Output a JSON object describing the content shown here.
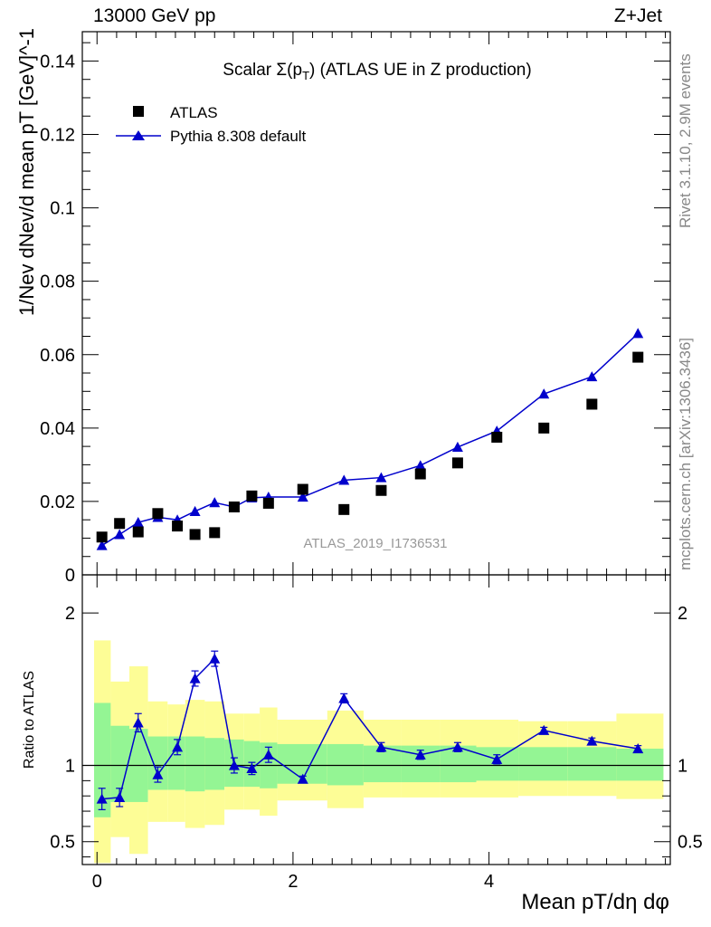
{
  "header": {
    "left": "13000 GeV pp",
    "right": "Z+Jet"
  },
  "side_labels": {
    "rivet": "Rivet 3.1.10,  2.9M events",
    "mcplots": "mcplots.cern.ch [arXiv:1306.3436]"
  },
  "chart_data": [
    {
      "type": "scatter",
      "panel": "main",
      "title": "Scalar Σ(p_T) (ATLAS UE in Z production)",
      "watermark": "ATLAS_2019_I1736531",
      "ylabel": "1/N_ev dN_ev/d mean p_T [GeV]^-1",
      "xlabel": "",
      "xlim": [
        -0.15,
        5.85
      ],
      "ylim": [
        0,
        0.148
      ],
      "y_ticks": [
        0,
        0.02,
        0.04,
        0.06,
        0.08,
        0.1,
        0.12,
        0.14
      ],
      "y_tick_labels": [
        "0",
        "0.02",
        "0.04",
        "0.06",
        "0.08",
        "0.1",
        "0.12",
        "0.14"
      ],
      "x_ticks": [
        0,
        2,
        4
      ],
      "legend_position": "top-left",
      "series": [
        {
          "name": "ATLAS",
          "style": "square-marker",
          "color": "#000000",
          "x": [
            0.05,
            0.23,
            0.42,
            0.62,
            0.82,
            1.0,
            1.2,
            1.4,
            1.58,
            1.75,
            2.1,
            2.52,
            2.9,
            3.3,
            3.68,
            4.08,
            4.56,
            5.05,
            5.52
          ],
          "y": [
            0.0103,
            0.014,
            0.0117,
            0.0167,
            0.0133,
            0.011,
            0.0115,
            0.0185,
            0.0215,
            0.0195,
            0.0233,
            0.0178,
            0.023,
            0.0275,
            0.0305,
            0.0375,
            0.04,
            0.0465,
            0.0593
          ]
        },
        {
          "name": "Pythia 8.308 default",
          "style": "triangle-line",
          "color": "#0000cc",
          "x": [
            0.05,
            0.23,
            0.42,
            0.62,
            0.82,
            1.0,
            1.2,
            1.4,
            1.58,
            1.75,
            2.1,
            2.52,
            2.9,
            3.3,
            3.68,
            4.08,
            4.56,
            5.05,
            5.52
          ],
          "y": [
            0.008,
            0.011,
            0.0143,
            0.0157,
            0.015,
            0.0173,
            0.0197,
            0.0185,
            0.021,
            0.0212,
            0.0212,
            0.0258,
            0.0265,
            0.0298,
            0.0348,
            0.0392,
            0.0493,
            0.054,
            0.0658
          ],
          "err": [
            0.0008,
            0.0007,
            0.0007,
            0.0008,
            0.0008,
            0.0008,
            0.001,
            0.0008,
            0.0008,
            0.001,
            0.0008,
            0.0008,
            0.0008,
            0.0008,
            0.0008,
            0.0008,
            0.001,
            0.001,
            0.0012
          ]
        }
      ]
    },
    {
      "type": "line",
      "panel": "ratio",
      "ylabel": "Ratio to ATLAS",
      "xlabel": "Mean p_T/dη dφ",
      "xlim": [
        -0.15,
        5.85
      ],
      "ylim": [
        0.35,
        2.25
      ],
      "y_ticks": [
        0.5,
        1,
        2
      ],
      "y_tick_labels": [
        "0.5",
        "1",
        "2"
      ],
      "x_ticks": [
        0,
        2,
        4
      ],
      "x_tick_labels": [
        "0",
        "2",
        "4"
      ],
      "reference_line": 1,
      "bands": {
        "bin_edges": [
          -0.03,
          0.14,
          0.33,
          0.52,
          0.72,
          0.9,
          1.1,
          1.3,
          1.5,
          1.66,
          1.84,
          2.35,
          2.72,
          3.1,
          3.5,
          3.87,
          4.3,
          4.8,
          5.3,
          5.78
        ],
        "inner_color": "#94f594",
        "outer_color": "#fdfd96",
        "inner_low": [
          0.66,
          0.76,
          0.76,
          0.84,
          0.84,
          0.83,
          0.84,
          0.86,
          0.86,
          0.85,
          0.88,
          0.87,
          0.89,
          0.89,
          0.89,
          0.9,
          0.9,
          0.9,
          0.9
        ],
        "inner_high": [
          1.41,
          1.26,
          1.24,
          1.19,
          1.19,
          1.19,
          1.18,
          1.17,
          1.16,
          1.15,
          1.14,
          1.14,
          1.13,
          1.13,
          1.13,
          1.12,
          1.12,
          1.12,
          1.11
        ],
        "outer_low": [
          0.36,
          0.53,
          0.42,
          0.63,
          0.63,
          0.59,
          0.61,
          0.71,
          0.71,
          0.67,
          0.77,
          0.72,
          0.79,
          0.79,
          0.79,
          0.79,
          0.8,
          0.8,
          0.78
        ],
        "outer_high": [
          1.82,
          1.55,
          1.65,
          1.42,
          1.4,
          1.43,
          1.42,
          1.34,
          1.34,
          1.38,
          1.3,
          1.36,
          1.3,
          1.3,
          1.3,
          1.3,
          1.29,
          1.29,
          1.34
        ]
      },
      "series": [
        {
          "name": "Pythia 8.308 default",
          "color": "#0000cc",
          "x": [
            0.05,
            0.23,
            0.42,
            0.62,
            0.82,
            1.0,
            1.2,
            1.4,
            1.58,
            1.75,
            2.1,
            2.52,
            2.9,
            3.3,
            3.68,
            4.08,
            4.56,
            5.05,
            5.52
          ],
          "y": [
            0.78,
            0.79,
            1.28,
            0.94,
            1.12,
            1.57,
            1.7,
            1.0,
            0.98,
            1.07,
            0.91,
            1.44,
            1.12,
            1.07,
            1.12,
            1.04,
            1.23,
            1.16,
            1.11
          ],
          "err": [
            0.07,
            0.06,
            0.06,
            0.05,
            0.05,
            0.05,
            0.05,
            0.05,
            0.04,
            0.05,
            0.02,
            0.03,
            0.03,
            0.03,
            0.03,
            0.03,
            0.02,
            0.02,
            0.02
          ]
        }
      ]
    }
  ]
}
